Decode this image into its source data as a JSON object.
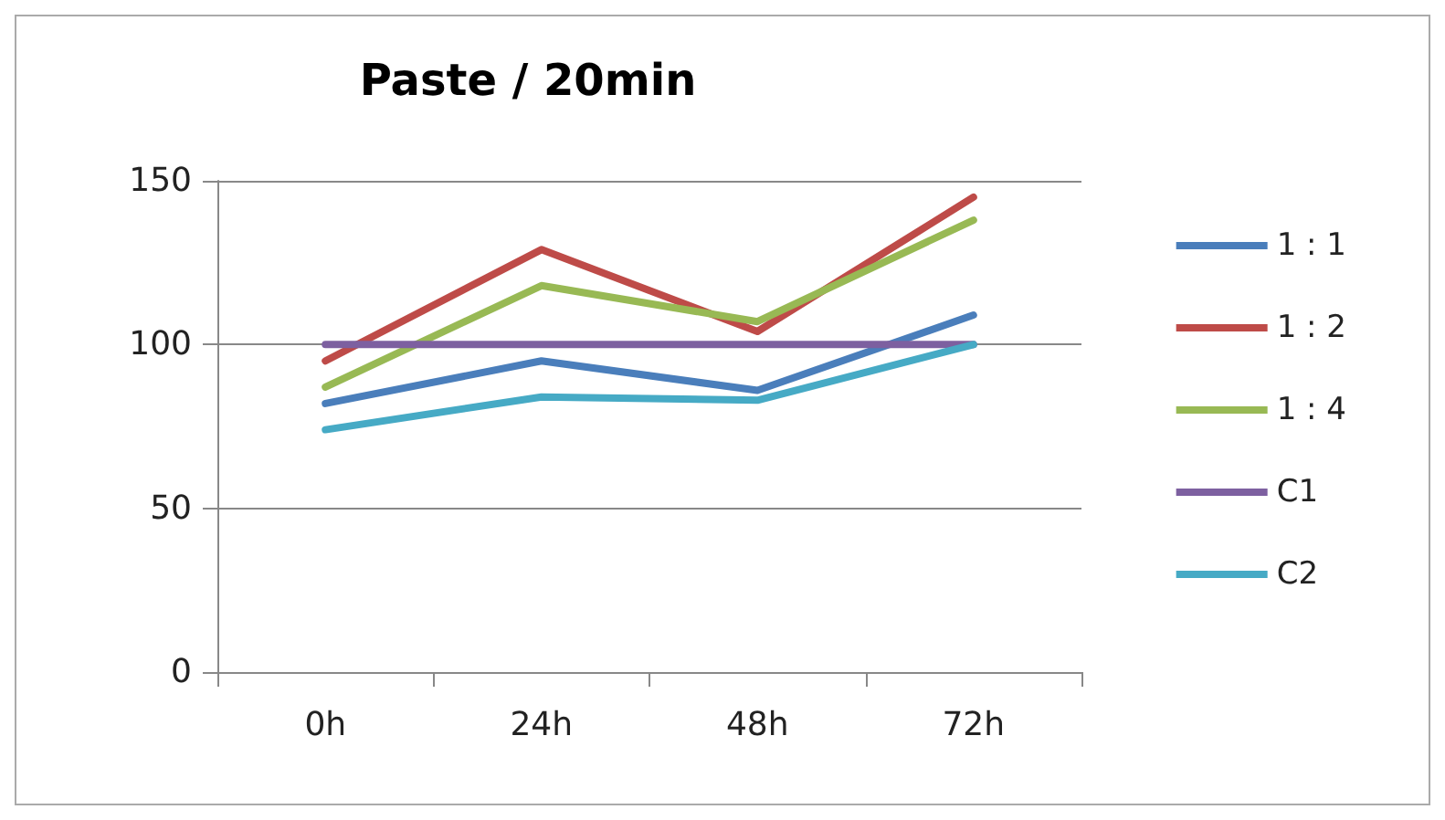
{
  "chart_data": {
    "type": "line",
    "title": "Paste / 20min",
    "categories": [
      "0h",
      "24h",
      "48h",
      "72h"
    ],
    "series": [
      {
        "name": "1 : 1",
        "color": "#4a7ebb",
        "values": [
          82,
          95,
          86,
          109
        ]
      },
      {
        "name": "1 : 2",
        "color": "#be4b48",
        "values": [
          95,
          129,
          104,
          145
        ]
      },
      {
        "name": "1 : 4",
        "color": "#98b954",
        "values": [
          87,
          118,
          107,
          138
        ]
      },
      {
        "name": "C1",
        "color": "#7d60a0",
        "values": [
          100,
          100,
          100,
          100
        ]
      },
      {
        "name": "C2",
        "color": "#46aac5",
        "values": [
          74,
          84,
          83,
          100
        ]
      }
    ],
    "ylim": [
      0,
      150
    ],
    "yticks": [
      0,
      50,
      100,
      150
    ],
    "grid": "y",
    "legend": "right",
    "marker": "none",
    "line_style": "solid"
  }
}
